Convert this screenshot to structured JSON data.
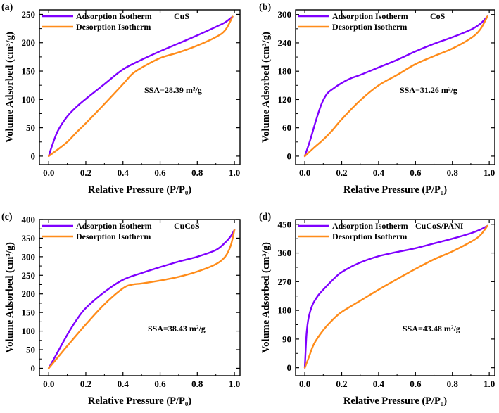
{
  "colors": {
    "adsorption": "#7f00ff",
    "desorption": "#ff8c1a",
    "axis": "#000000"
  },
  "chart_data": [
    {
      "type": "line",
      "panel": "(a)",
      "sample": "CuS",
      "ssa_text": "SSA=28.39 m²/g",
      "xlabel": "Relative Pressure (P/P₀)",
      "ylabel": "Volume Adsorbed (cm³/g)",
      "xlim": [
        -0.05,
        1.03
      ],
      "ylim": [
        -15,
        258
      ],
      "xticks": [
        0.0,
        0.2,
        0.4,
        0.6,
        0.8,
        1.0
      ],
      "xtick_labels": [
        "0.0",
        "0.2",
        "0.4",
        "0.6",
        "0.8",
        "1.0"
      ],
      "yticks": [
        0,
        50,
        100,
        150,
        200,
        250
      ],
      "ytick_labels": [
        "0",
        "50",
        "100",
        "150",
        "200",
        "250"
      ],
      "grid": false,
      "legend": "top-left",
      "series": [
        {
          "name": "Adsorption Isotherm",
          "color": "#7f00ff",
          "x": [
            0.0,
            0.02,
            0.05,
            0.1,
            0.15,
            0.2,
            0.3,
            0.4,
            0.5,
            0.6,
            0.7,
            0.8,
            0.9,
            0.95,
            0.99
          ],
          "y": [
            0,
            20,
            45,
            70,
            87,
            101,
            127,
            153,
            170,
            185,
            199,
            213,
            228,
            236,
            246
          ]
        },
        {
          "name": "Desorption Isotherm",
          "color": "#ff8c1a",
          "x": [
            0.0,
            0.05,
            0.1,
            0.15,
            0.2,
            0.3,
            0.4,
            0.45,
            0.5,
            0.6,
            0.7,
            0.8,
            0.9,
            0.95,
            0.99
          ],
          "y": [
            0,
            12,
            25,
            42,
            58,
            92,
            127,
            145,
            156,
            173,
            183,
            195,
            210,
            222,
            246
          ]
        }
      ]
    },
    {
      "type": "line",
      "panel": "(b)",
      "sample": "CoS",
      "ssa_text": "SSA=31.26 m²/g",
      "xlabel": "Relative Pressure (P/P₀)",
      "ylabel": "Volume Adsorbed (cm³/g)",
      "xlim": [
        -0.05,
        1.03
      ],
      "ylim": [
        -18,
        310
      ],
      "xticks": [
        0.0,
        0.2,
        0.4,
        0.6,
        0.8,
        1.0
      ],
      "xtick_labels": [
        "0.0",
        "0.2",
        "0.4",
        "0.6",
        "0.8",
        "1.0"
      ],
      "yticks": [
        0,
        60,
        120,
        180,
        240,
        300
      ],
      "ytick_labels": [
        "0",
        "60",
        "120",
        "180",
        "240",
        "300"
      ],
      "grid": false,
      "legend": "top-left",
      "series": [
        {
          "name": "Adsorption Isotherm",
          "color": "#7f00ff",
          "x": [
            0.0,
            0.03,
            0.06,
            0.09,
            0.12,
            0.15,
            0.2,
            0.25,
            0.3,
            0.4,
            0.5,
            0.6,
            0.7,
            0.8,
            0.9,
            0.95,
            0.99
          ],
          "y": [
            0,
            35,
            75,
            110,
            132,
            142,
            155,
            165,
            172,
            188,
            204,
            222,
            238,
            252,
            268,
            280,
            296
          ]
        },
        {
          "name": "Desorption Isotherm",
          "color": "#ff8c1a",
          "x": [
            0.0,
            0.05,
            0.1,
            0.15,
            0.2,
            0.3,
            0.4,
            0.5,
            0.6,
            0.7,
            0.8,
            0.9,
            0.95,
            0.99
          ],
          "y": [
            0,
            18,
            35,
            55,
            78,
            118,
            150,
            172,
            195,
            212,
            228,
            250,
            268,
            296
          ]
        }
      ]
    },
    {
      "type": "line",
      "panel": "(c)",
      "sample": "CuCoS",
      "ssa_text": "SSA=38.43 m²/g",
      "xlabel": "Relative Pressure (P/P₀)",
      "ylabel": "Volume Adsorbed (cm³/g)",
      "xlim": [
        -0.05,
        1.03
      ],
      "ylim": [
        -20,
        400
      ],
      "xticks": [
        0.0,
        0.2,
        0.4,
        0.6,
        0.8,
        1.0
      ],
      "xtick_labels": [
        "0.0",
        "0.2",
        "0.4",
        "0.6",
        "0.8",
        "1.0"
      ],
      "yticks": [
        0,
        50,
        100,
        150,
        200,
        250,
        300,
        350,
        400
      ],
      "ytick_labels": [
        "0",
        "50",
        "100",
        "150",
        "200",
        "250",
        "300",
        "350",
        "400"
      ],
      "grid": false,
      "legend": "top-left",
      "series": [
        {
          "name": "Adsorption Isotherm",
          "color": "#7f00ff",
          "x": [
            0.0,
            0.05,
            0.1,
            0.15,
            0.2,
            0.3,
            0.4,
            0.5,
            0.6,
            0.7,
            0.8,
            0.9,
            0.95,
            0.98,
            1.0
          ],
          "y": [
            0,
            45,
            90,
            130,
            162,
            205,
            238,
            256,
            272,
            287,
            300,
            318,
            338,
            355,
            372
          ]
        },
        {
          "name": "Desorption Isotherm",
          "color": "#ff8c1a",
          "x": [
            0.0,
            0.05,
            0.1,
            0.2,
            0.3,
            0.4,
            0.45,
            0.5,
            0.6,
            0.7,
            0.8,
            0.9,
            0.95,
            0.98,
            1.0
          ],
          "y": [
            0,
            30,
            60,
            118,
            172,
            215,
            225,
            228,
            236,
            246,
            260,
            280,
            300,
            330,
            372
          ]
        }
      ]
    },
    {
      "type": "line",
      "panel": "(d)",
      "sample": "CuCoS/PANI",
      "ssa_text": "SSA=43.48 m²/g",
      "xlabel": "Relative Pressure (P/P₀)",
      "ylabel": "Volume Adsorbed (cm³/g)",
      "xlim": [
        -0.05,
        1.03
      ],
      "ylim": [
        -25,
        465
      ],
      "xticks": [
        0.0,
        0.2,
        0.4,
        0.6,
        0.8,
        1.0
      ],
      "xtick_labels": [
        "0.0",
        "0.2",
        "0.4",
        "0.6",
        "0.8",
        "1.0"
      ],
      "yticks": [
        0,
        90,
        180,
        270,
        360,
        450
      ],
      "ytick_labels": [
        "0",
        "90",
        "180",
        "270",
        "360",
        "450"
      ],
      "grid": false,
      "legend": "top-left",
      "series": [
        {
          "name": "Adsorption Isotherm",
          "color": "#7f00ff",
          "x": [
            0.0,
            0.005,
            0.01,
            0.02,
            0.04,
            0.07,
            0.1,
            0.15,
            0.2,
            0.3,
            0.4,
            0.5,
            0.6,
            0.7,
            0.8,
            0.9,
            0.95,
            0.99
          ],
          "y": [
            0,
            60,
            110,
            155,
            195,
            225,
            245,
            275,
            300,
            330,
            350,
            363,
            375,
            390,
            405,
            422,
            433,
            445
          ]
        },
        {
          "name": "Desorption Isotherm",
          "color": "#ff8c1a",
          "x": [
            0.0,
            0.02,
            0.05,
            0.1,
            0.15,
            0.2,
            0.3,
            0.4,
            0.5,
            0.6,
            0.7,
            0.8,
            0.9,
            0.95,
            0.99
          ],
          "y": [
            0,
            30,
            75,
            118,
            150,
            175,
            210,
            245,
            278,
            310,
            340,
            365,
            395,
            415,
            445
          ]
        }
      ]
    }
  ]
}
